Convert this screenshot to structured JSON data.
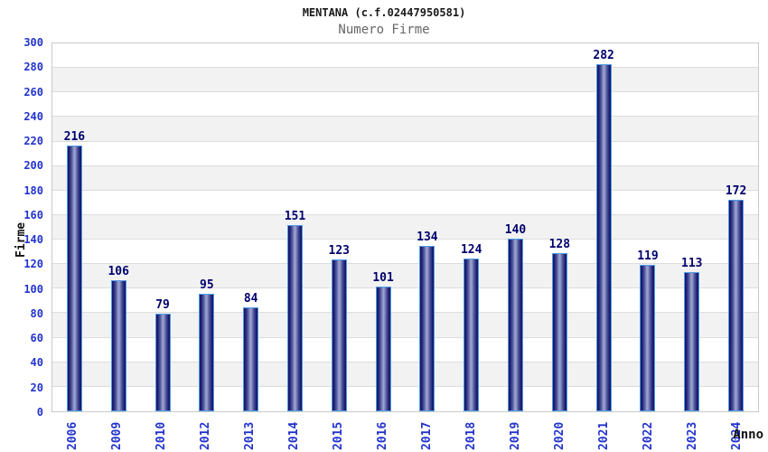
{
  "header": {
    "title": "MENTANA (c.f.02447950581)",
    "subtitle": "Numero Firme"
  },
  "chart_data": {
    "type": "bar",
    "title": "MENTANA (c.f.02447950581)",
    "subtitle": "Numero Firme",
    "xlabel": "Anno",
    "ylabel": "Firme",
    "categories": [
      "2006",
      "2009",
      "2010",
      "2012",
      "2013",
      "2014",
      "2015",
      "2016",
      "2017",
      "2018",
      "2019",
      "2020",
      "2021",
      "2022",
      "2023",
      "2024"
    ],
    "values": [
      216,
      106,
      79,
      95,
      84,
      151,
      123,
      101,
      134,
      124,
      140,
      128,
      282,
      119,
      113,
      172
    ],
    "ylim": [
      0,
      300
    ],
    "ytick_step": 20,
    "grid": "horizontal-bands-alternating",
    "legend": "none",
    "colors": {
      "bar_dark": "#14145e",
      "bar_light": "#97a0ce",
      "bar_border": "#4e9ce8",
      "value_label": "#00006e",
      "tick_label": "#2233cc",
      "band_gray": "#f2f2f2",
      "band_white": "#ffffff",
      "gridline": "#dcdcdc",
      "plot_border": "#c9c9c9",
      "title": "#1a1a1a",
      "subtitle": "#666666",
      "axis_title": "#111111",
      "background": "#ffffff"
    }
  }
}
